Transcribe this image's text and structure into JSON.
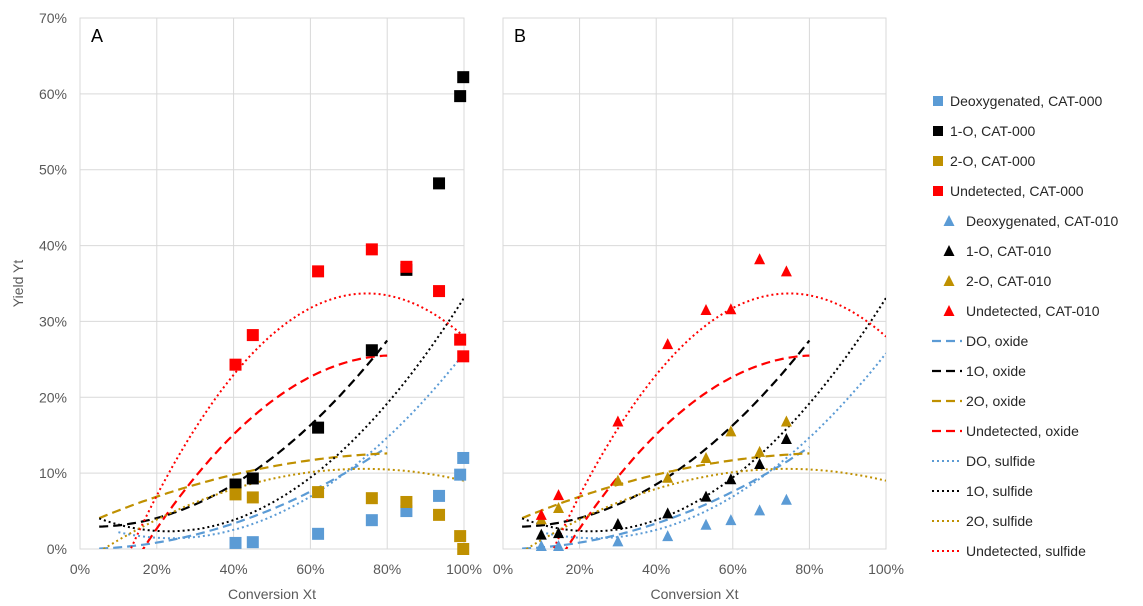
{
  "chart_data": [
    {
      "type": "scatter",
      "panel_label": "A",
      "xlabel": "Conversion Xt",
      "ylabel": "Yield Yt",
      "xlim": [
        0,
        1
      ],
      "ylim": [
        0,
        0.7
      ],
      "x_ticks": [
        "0%",
        "20%",
        "40%",
        "60%",
        "80%",
        "100%"
      ],
      "y_ticks": [
        "0%",
        "10%",
        "20%",
        "30%",
        "40%",
        "50%",
        "60%",
        "70%"
      ],
      "grid": true,
      "series": [
        {
          "legend": "Deoxygenated, CAT-000",
          "marker": "square",
          "color": "#5B9BD5",
          "points": [
            [
              0.405,
              0.008
            ],
            [
              0.45,
              0.009
            ],
            [
              0.62,
              0.02
            ],
            [
              0.76,
              0.038
            ],
            [
              0.85,
              0.05
            ],
            [
              0.935,
              0.07
            ],
            [
              0.99,
              0.098
            ],
            [
              0.998,
              0.12
            ]
          ]
        },
        {
          "legend": "1-O, CAT-000",
          "marker": "square",
          "color": "#000000",
          "points": [
            [
              0.405,
              0.085
            ],
            [
              0.45,
              0.093
            ],
            [
              0.62,
              0.16
            ],
            [
              0.76,
              0.262
            ],
            [
              0.85,
              0.368
            ],
            [
              0.935,
              0.482
            ],
            [
              0.99,
              0.597
            ],
            [
              0.998,
              0.622
            ]
          ]
        },
        {
          "legend": "2-O, CAT-000",
          "marker": "square",
          "color": "#BF9000",
          "points": [
            [
              0.405,
              0.072
            ],
            [
              0.45,
              0.068
            ],
            [
              0.62,
              0.075
            ],
            [
              0.76,
              0.067
            ],
            [
              0.85,
              0.062
            ],
            [
              0.935,
              0.045
            ],
            [
              0.99,
              0.017
            ],
            [
              0.998,
              0.0
            ]
          ]
        },
        {
          "legend": "Undetected, CAT-000",
          "marker": "square",
          "color": "#FF0000",
          "points": [
            [
              0.405,
              0.243
            ],
            [
              0.45,
              0.282
            ],
            [
              0.62,
              0.366
            ],
            [
              0.76,
              0.395
            ],
            [
              0.85,
              0.372
            ],
            [
              0.935,
              0.34
            ],
            [
              0.99,
              0.276
            ],
            [
              0.998,
              0.254
            ]
          ]
        }
      ],
      "fits": [
        {
          "legend": "DO, oxide",
          "style": "dashed",
          "color": "#5B9BD5",
          "x_range": [
            0.05,
            0.8
          ],
          "coef": [
            0.0,
            0.0,
            0.21
          ]
        },
        {
          "legend": "1O, oxide",
          "style": "dashed",
          "color": "#000000",
          "x_range": [
            0.05,
            0.8
          ],
          "coef": [
            0.03,
            -0.03,
            0.42
          ]
        },
        {
          "legend": "2O, oxide",
          "style": "dashed",
          "color": "#BF9000",
          "x_range": [
            0.05,
            0.8
          ],
          "coef": [
            0.03,
            0.22,
            -0.125
          ]
        },
        {
          "legend": "Undetected, oxide",
          "style": "dashed",
          "color": "#FF0000",
          "x_range": [
            0.08,
            0.8
          ],
          "coef": [
            -0.145,
            0.98,
            -0.6
          ]
        },
        {
          "legend": "DO, sulfide",
          "style": "dotted",
          "color": "#5B9BD5",
          "x_range": [
            0.1,
            1.0
          ],
          "coef": [
            0.038,
            -0.2,
            0.42
          ]
        },
        {
          "legend": "1O, sulfide",
          "style": "dotted",
          "color": "#000000",
          "x_range": [
            0.05,
            1.0
          ],
          "coef": [
            0.051,
            -0.24,
            0.52
          ]
        },
        {
          "legend": "2O, sulfide",
          "style": "dotted",
          "color": "#BF9000",
          "x_range": [
            0.05,
            1.0
          ],
          "coef": [
            -0.02,
            0.34,
            -0.23
          ]
        },
        {
          "legend": "Undetected, sulfide",
          "style": "dotted",
          "color": "#FF0000",
          "x_range": [
            0.07,
            1.0
          ],
          "coef": [
            -0.16,
            1.33,
            -0.89
          ]
        }
      ]
    },
    {
      "type": "scatter",
      "panel_label": "B",
      "xlabel": "Conversion Xt",
      "xlim": [
        0,
        1
      ],
      "ylim": [
        0,
        0.7
      ],
      "x_ticks": [
        "0%",
        "20%",
        "40%",
        "60%",
        "80%",
        "100%"
      ],
      "grid": true,
      "series": [
        {
          "legend": "Deoxygenated, CAT-010",
          "marker": "triangle",
          "color": "#5B9BD5",
          "points": [
            [
              0.1,
              0.004
            ],
            [
              0.145,
              0.004
            ],
            [
              0.3,
              0.01
            ],
            [
              0.43,
              0.017
            ],
            [
              0.53,
              0.032
            ],
            [
              0.595,
              0.038
            ],
            [
              0.67,
              0.051
            ],
            [
              0.74,
              0.065
            ]
          ]
        },
        {
          "legend": "1-O, CAT-010",
          "marker": "triangle",
          "color": "#000000",
          "points": [
            [
              0.1,
              0.019
            ],
            [
              0.145,
              0.021
            ],
            [
              0.3,
              0.033
            ],
            [
              0.43,
              0.047
            ],
            [
              0.53,
              0.069
            ],
            [
              0.595,
              0.092
            ],
            [
              0.67,
              0.112
            ],
            [
              0.74,
              0.145
            ]
          ]
        },
        {
          "legend": "2-O, CAT-010",
          "marker": "triangle",
          "color": "#BF9000",
          "points": [
            [
              0.1,
              0.039
            ],
            [
              0.145,
              0.054
            ],
            [
              0.3,
              0.09
            ],
            [
              0.43,
              0.094
            ],
            [
              0.53,
              0.12
            ],
            [
              0.595,
              0.155
            ],
            [
              0.67,
              0.128
            ],
            [
              0.74,
              0.168
            ]
          ]
        },
        {
          "legend": "Undetected, CAT-010",
          "marker": "triangle",
          "color": "#FF0000",
          "points": [
            [
              0.1,
              0.045
            ],
            [
              0.145,
              0.071
            ],
            [
              0.3,
              0.168
            ],
            [
              0.43,
              0.27
            ],
            [
              0.53,
              0.315
            ],
            [
              0.595,
              0.316
            ],
            [
              0.67,
              0.382
            ],
            [
              0.74,
              0.366
            ]
          ]
        }
      ],
      "fits": [
        {
          "legend": "DO, oxide",
          "style": "dashed",
          "color": "#5B9BD5",
          "x_range": [
            0.05,
            0.8
          ],
          "coef": [
            0.0,
            0.0,
            0.21
          ]
        },
        {
          "legend": "1O, oxide",
          "style": "dashed",
          "color": "#000000",
          "x_range": [
            0.05,
            0.8
          ],
          "coef": [
            0.03,
            -0.03,
            0.42
          ]
        },
        {
          "legend": "2O, oxide",
          "style": "dashed",
          "color": "#BF9000",
          "x_range": [
            0.05,
            0.8
          ],
          "coef": [
            0.03,
            0.22,
            -0.125
          ]
        },
        {
          "legend": "Undetected, oxide",
          "style": "dashed",
          "color": "#FF0000",
          "x_range": [
            0.08,
            0.8
          ],
          "coef": [
            -0.145,
            0.98,
            -0.6
          ]
        },
        {
          "legend": "DO, sulfide",
          "style": "dotted",
          "color": "#5B9BD5",
          "x_range": [
            0.1,
            1.0
          ],
          "coef": [
            0.038,
            -0.2,
            0.42
          ]
        },
        {
          "legend": "1O, sulfide",
          "style": "dotted",
          "color": "#000000",
          "x_range": [
            0.05,
            1.0
          ],
          "coef": [
            0.051,
            -0.24,
            0.52
          ]
        },
        {
          "legend": "2O, sulfide",
          "style": "dotted",
          "color": "#BF9000",
          "x_range": [
            0.05,
            1.0
          ],
          "coef": [
            -0.02,
            0.34,
            -0.23
          ]
        },
        {
          "legend": "Undetected, sulfide",
          "style": "dotted",
          "color": "#FF0000",
          "x_range": [
            0.07,
            1.0
          ],
          "coef": [
            -0.16,
            1.33,
            -0.89
          ]
        }
      ]
    }
  ],
  "legend": {
    "position": "right",
    "entries": [
      {
        "label": "Deoxygenated, CAT-000",
        "kind": "square",
        "color": "#5B9BD5"
      },
      {
        "label": "1-O, CAT-000",
        "kind": "square",
        "color": "#000000"
      },
      {
        "label": "2-O, CAT-000",
        "kind": "square",
        "color": "#BF9000"
      },
      {
        "label": "Undetected, CAT-000",
        "kind": "square",
        "color": "#FF0000"
      },
      {
        "label": "Deoxygenated, CAT-010",
        "kind": "triangle",
        "color": "#5B9BD5"
      },
      {
        "label": "1-O, CAT-010",
        "kind": "triangle",
        "color": "#000000"
      },
      {
        "label": "2-O, CAT-010",
        "kind": "triangle",
        "color": "#BF9000"
      },
      {
        "label": "Undetected, CAT-010",
        "kind": "triangle",
        "color": "#FF0000"
      },
      {
        "label": "DO, oxide",
        "kind": "dashed",
        "color": "#5B9BD5"
      },
      {
        "label": "1O, oxide",
        "kind": "dashed",
        "color": "#000000"
      },
      {
        "label": "2O, oxide",
        "kind": "dashed",
        "color": "#BF9000"
      },
      {
        "label": "Undetected, oxide",
        "kind": "dashed",
        "color": "#FF0000"
      },
      {
        "label": "DO, sulfide",
        "kind": "dotted",
        "color": "#5B9BD5"
      },
      {
        "label": "1O, sulfide",
        "kind": "dotted",
        "color": "#000000"
      },
      {
        "label": "2O, sulfide",
        "kind": "dotted",
        "color": "#BF9000"
      },
      {
        "label": "Undetected, sulfide",
        "kind": "dotted",
        "color": "#FF0000"
      }
    ]
  }
}
